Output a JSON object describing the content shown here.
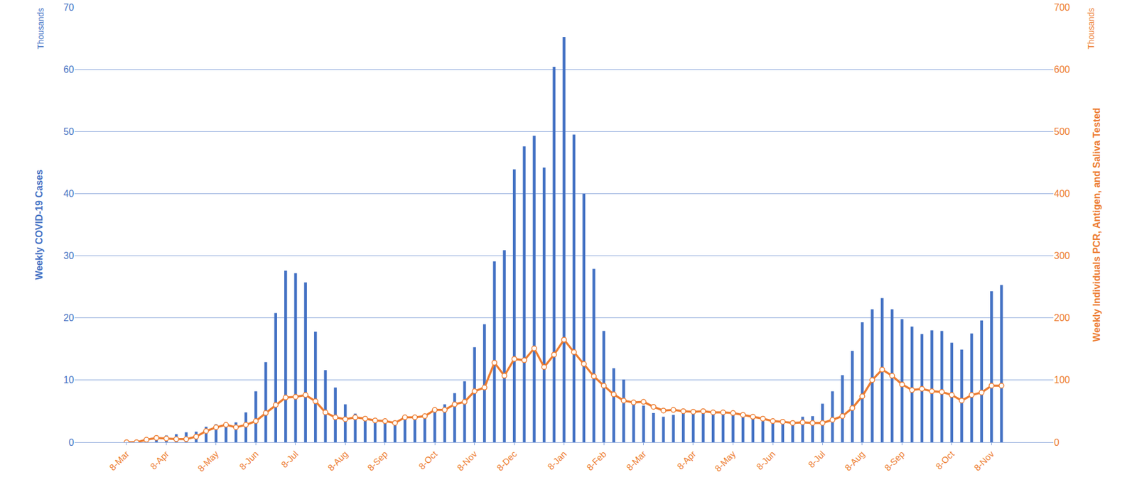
{
  "chart_data": {
    "type": "bar",
    "y_label": "Weekly COVID-19 Cases",
    "y2_label": "Weekly Individuals PCR, Antigen, and Saliva Tested",
    "annotations": [
      {
        "text": "Thousands",
        "axis": "y"
      },
      {
        "text": "Thousands",
        "axis": "y2"
      }
    ],
    "categories": [
      "8-Mar",
      null,
      null,
      null,
      "8-Apr",
      null,
      null,
      null,
      null,
      "8-May",
      null,
      null,
      null,
      "8-Jun",
      null,
      null,
      null,
      "8-Jul",
      null,
      null,
      null,
      null,
      "8-Aug",
      null,
      null,
      null,
      "8-Sep",
      null,
      null,
      null,
      null,
      "8-Oct",
      null,
      null,
      null,
      "8-Nov",
      null,
      null,
      null,
      "8-Dec",
      null,
      null,
      null,
      null,
      "8-Jan",
      null,
      null,
      null,
      "8-Feb",
      null,
      null,
      null,
      "8-Mar",
      null,
      null,
      null,
      null,
      "8-Apr",
      null,
      null,
      null,
      "8-May",
      null,
      null,
      null,
      "8-Jun",
      null,
      null,
      null,
      null,
      "8-Jul",
      null,
      null,
      null,
      "8-Aug",
      null,
      null,
      null,
      "8-Sep",
      null,
      null,
      null,
      null,
      "8-Oct",
      null,
      null,
      null,
      "8-Nov",
      null
    ],
    "series": [
      {
        "type": "bar",
        "axis": "y",
        "color": "#4472c4",
        "values": [
          0.1,
          0.3,
          0.5,
          0.9,
          1.1,
          1.3,
          1.6,
          1.7,
          2.5,
          2.9,
          3.0,
          3.2,
          4.8,
          8.2,
          12.9,
          20.8,
          27.6,
          27.2,
          25.7,
          17.8,
          11.6,
          8.8,
          6.1,
          4.6,
          4.0,
          3.6,
          3.4,
          3.3,
          4.0,
          4.0,
          4.2,
          5.5,
          6.1,
          7.9,
          9.8,
          15.3,
          19.0,
          29.1,
          30.9,
          43.9,
          47.6,
          49.3,
          44.2,
          60.4,
          65.2,
          49.5,
          40.0,
          27.9,
          17.9,
          11.9,
          10.1,
          6.5,
          5.9,
          4.7,
          4.1,
          4.4,
          4.8,
          5.0,
          4.9,
          4.8,
          4.8,
          4.5,
          4.3,
          3.8,
          3.4,
          3.2,
          3.1,
          3.4,
          4.1,
          4.2,
          6.2,
          8.2,
          10.8,
          14.7,
          19.3,
          21.4,
          23.2,
          21.4,
          19.8,
          18.6,
          17.4,
          18.0,
          17.9,
          16.0,
          14.9,
          17.5,
          19.6,
          24.3,
          25.3
        ]
      },
      {
        "type": "line",
        "axis": "y2",
        "color": "#ed7d31",
        "marker": "circle",
        "values": [
          0,
          0,
          4,
          7,
          6,
          5,
          5,
          9,
          18,
          24,
          28,
          24,
          28,
          34,
          47,
          60,
          72,
          73,
          76,
          66,
          48,
          40,
          37,
          40,
          38,
          35,
          34,
          31,
          40,
          40,
          42,
          52,
          52,
          61,
          65,
          82,
          88,
          128,
          107,
          134,
          132,
          151,
          121,
          141,
          165,
          145,
          126,
          106,
          91,
          77,
          67,
          64,
          65,
          57,
          51,
          52,
          50,
          49,
          50,
          48,
          48,
          47,
          44,
          41,
          38,
          34,
          33,
          31,
          32,
          31,
          31,
          36,
          42,
          55,
          74,
          100,
          117,
          107,
          93,
          84,
          86,
          82,
          81,
          76,
          67,
          76,
          80,
          91,
          91
        ]
      }
    ],
    "ylim": [
      0,
      70
    ],
    "yticks": [
      0,
      10,
      20,
      30,
      40,
      50,
      60,
      70
    ],
    "y2lim": [
      0,
      700
    ],
    "y2ticks": [
      0,
      100,
      200,
      300,
      400,
      500,
      600,
      700
    ],
    "grid": true
  }
}
